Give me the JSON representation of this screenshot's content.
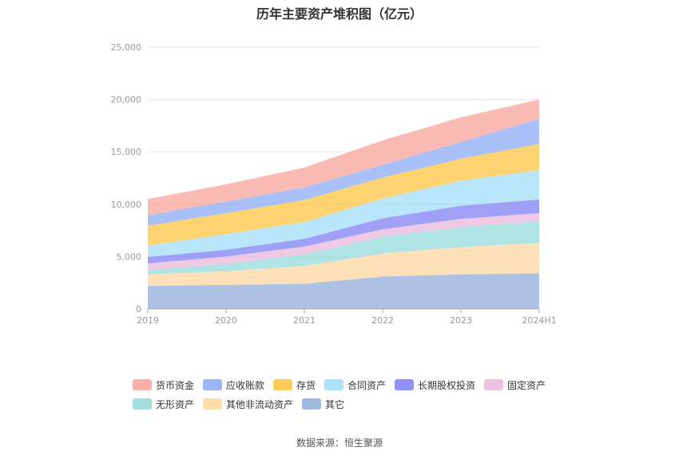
{
  "chart_data": {
    "type": "area",
    "title": "历年主要资产堆积图（亿元）",
    "categories": [
      "2019",
      "2020",
      "2021",
      "2022",
      "2023",
      "2024H1"
    ],
    "y_ticks": [
      "0",
      "5,000",
      "10,000",
      "15,000",
      "20,000",
      "25,000"
    ],
    "ylim": [
      0,
      25000
    ],
    "stacked": true,
    "grid": true,
    "legend_position": "bottom",
    "series": [
      {
        "name": "其它",
        "color": "#8eabda",
        "values": [
          2200,
          2300,
          2400,
          3100,
          3300,
          3400
        ]
      },
      {
        "name": "其他非流动资产",
        "color": "#fdd69e",
        "values": [
          1100,
          1300,
          1700,
          2200,
          2600,
          2900
        ]
      },
      {
        "name": "无形资产",
        "color": "#92d8d8",
        "values": [
          400,
          700,
          1100,
          1600,
          1900,
          2100
        ]
      },
      {
        "name": "固定资产",
        "color": "#e9b5d9",
        "values": [
          650,
          700,
          750,
          700,
          800,
          750
        ]
      },
      {
        "name": "长期股权投资",
        "color": "#7c7cf3",
        "values": [
          600,
          650,
          750,
          1050,
          1250,
          1300
        ]
      },
      {
        "name": "合同资产",
        "color": "#9fdcf9",
        "values": [
          1100,
          1500,
          1600,
          1900,
          2400,
          2800
        ]
      },
      {
        "name": "存货",
        "color": "#fdc43b",
        "values": [
          1900,
          2000,
          2100,
          2000,
          2100,
          2500
        ]
      },
      {
        "name": "应收账款",
        "color": "#89a8f7",
        "values": [
          1000,
          1100,
          1200,
          1200,
          1600,
          2400
        ]
      },
      {
        "name": "货币资金",
        "color": "#f9a199",
        "values": [
          1550,
          1650,
          1900,
          2350,
          2350,
          1850
        ]
      }
    ],
    "legend_order": [
      "货币资金",
      "应收账款",
      "存货",
      "合同资产",
      "长期股权投资",
      "固定资产",
      "无形资产",
      "其他非流动资产",
      "其它"
    ]
  },
  "footer": {
    "source": "数据来源：恒生聚源"
  }
}
